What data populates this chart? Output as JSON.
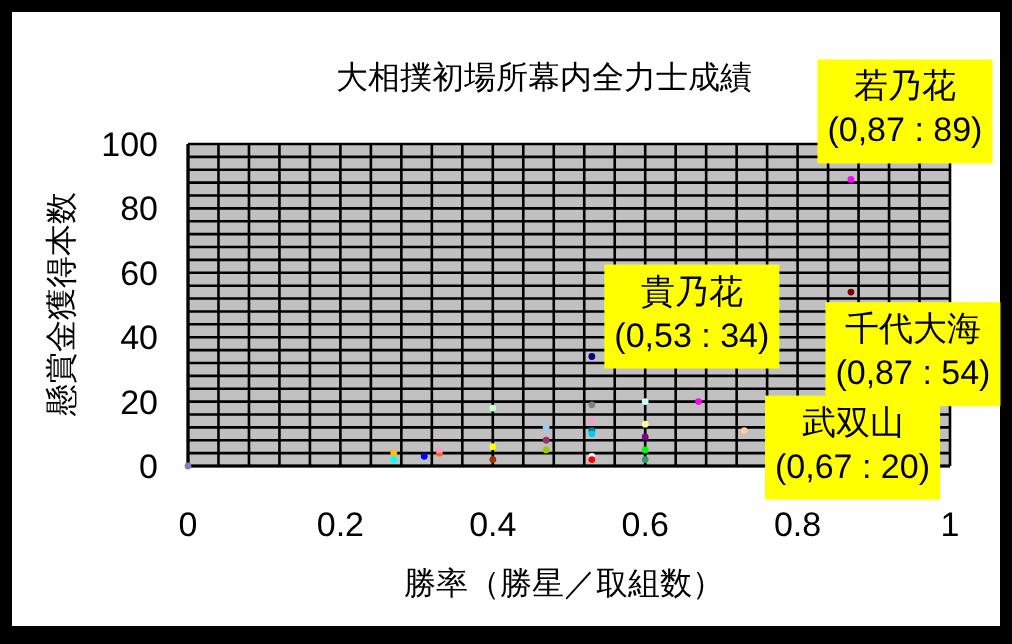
{
  "chart_data": {
    "type": "scatter",
    "title": "大相撲初場所幕内全力士成績",
    "xlabel": "勝率（勝星／取組数）",
    "ylabel": "懸賞金獲得本数",
    "xlim": [
      0,
      1
    ],
    "ylim": [
      0,
      100
    ],
    "xticks": [
      0,
      {
        "value": 0.04,
        "label": null
      },
      {
        "value": 0.08,
        "label": null
      },
      {
        "value": 0.12,
        "label": null
      },
      {
        "value": 0.16,
        "label": null
      },
      0.2,
      {
        "value": 0.24,
        "label": null
      },
      {
        "value": 0.28,
        "label": null
      },
      {
        "value": 0.32,
        "label": null
      },
      {
        "value": 0.36,
        "label": null
      },
      0.4,
      {
        "value": 0.44,
        "label": null
      },
      {
        "value": 0.48,
        "label": null
      },
      {
        "value": 0.52,
        "label": null
      },
      {
        "value": 0.56,
        "label": null
      },
      0.6,
      {
        "value": 0.64,
        "label": null
      },
      {
        "value": 0.68,
        "label": null
      },
      {
        "value": 0.72,
        "label": null
      },
      {
        "value": 0.76,
        "label": null
      },
      0.8,
      {
        "value": 0.84,
        "label": null
      },
      {
        "value": 0.88,
        "label": null
      },
      {
        "value": 0.92,
        "label": null
      },
      {
        "value": 0.96,
        "label": null
      },
      1
    ],
    "yticks": [
      0,
      {
        "value": 4,
        "label": null
      },
      {
        "value": 8,
        "label": null
      },
      {
        "value": 12,
        "label": null
      },
      {
        "value": 16,
        "label": null
      },
      20,
      {
        "value": 24,
        "label": null
      },
      {
        "value": 28,
        "label": null
      },
      {
        "value": 32,
        "label": null
      },
      {
        "value": 36,
        "label": null
      },
      40,
      {
        "value": 44,
        "label": null
      },
      {
        "value": 48,
        "label": null
      },
      {
        "value": 52,
        "label": null
      },
      {
        "value": 56,
        "label": null
      },
      60,
      {
        "value": 64,
        "label": null
      },
      {
        "value": 68,
        "label": null
      },
      {
        "value": 72,
        "label": null
      },
      {
        "value": 76,
        "label": null
      },
      80,
      {
        "value": 84,
        "label": null
      },
      {
        "value": 88,
        "label": null
      },
      {
        "value": 92,
        "label": null
      },
      {
        "value": 96,
        "label": null
      },
      100
    ],
    "grid": true,
    "marker": "circle",
    "x": [
      0,
      0.27,
      0.27,
      0.31,
      0.33,
      0.33,
      0.4,
      0.4,
      0.4,
      0.47,
      0.47,
      0.47,
      0.53,
      0.53,
      0.53,
      0.53,
      0.53,
      0.53,
      0.53,
      0.6,
      0.6,
      0.6,
      0.6,
      0.6,
      0.67,
      0.73,
      0.87,
      0.87
    ],
    "values": [
      0,
      4,
      2,
      3,
      4,
      5,
      18,
      6,
      2,
      12,
      8,
      5,
      34,
      19,
      14,
      11,
      10,
      3,
      2,
      20,
      13,
      9,
      5,
      2,
      20,
      11,
      89,
      54
    ],
    "colors": [
      "#8080c0",
      "#ffc000",
      "#00ffff",
      "#0000ff",
      "#ff6600",
      "#ff99cc",
      "#ccffcc",
      "#ffff00",
      "#993300",
      "#99ccff",
      "#993366",
      "#99cc00",
      "#000080",
      "#808080",
      "#ff99cc",
      "#008080",
      "#00ccff",
      "#ffffff",
      "#ff0000",
      "#ccffff",
      "#ffff99",
      "#800080",
      "#00ff00",
      "#339966",
      "#ff00ff",
      "#ffcc99",
      "#ff00ff",
      "#800000"
    ],
    "annotations": [
      {
        "text": "若乃花\n(0,87 : 89)",
        "x": 0.87,
        "y": 89
      },
      {
        "text": "貴乃花\n(0,53 : 34)",
        "x": 0.53,
        "y": 34
      },
      {
        "text": "千代大海\n(0,87 : 54)",
        "x": 0.87,
        "y": 54
      },
      {
        "text": "武双山\n(0,67 : 20)",
        "x": 0.67,
        "y": 20
      }
    ]
  }
}
